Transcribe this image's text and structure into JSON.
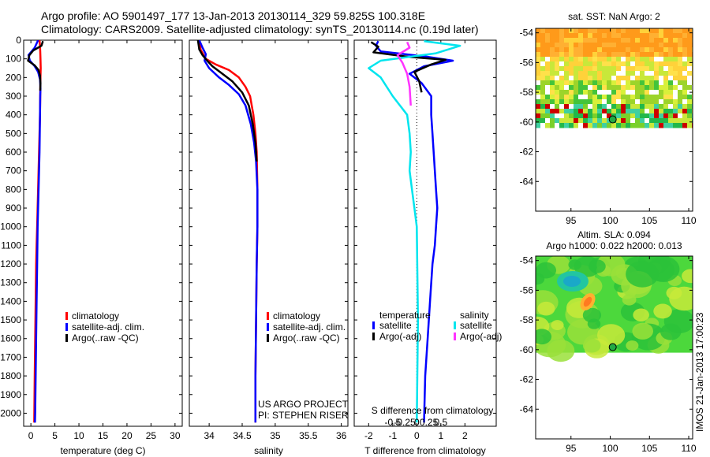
{
  "header": {
    "line1": "Argo profile: AO 5901497_177 13-Jan-2013 20130114_329 59.825S 100.318E",
    "line2": "Climatology: CARS2009. Satellite-adjusted climatology: synTS_20130114.nc (0.19d later)"
  },
  "stamp": "IMOS 21-Jan-2013 17:00:23",
  "colors": {
    "climatology": "#ff0000",
    "satellite": "#0000ff",
    "argo": "#000000",
    "sal_satellite": "#00e5ee",
    "sal_argo": "#ff33ff"
  },
  "chart_data": [
    {
      "type": "line",
      "name": "temperature-profile",
      "xlabel": "temperature (deg C)",
      "ylim": [
        2070,
        0
      ],
      "xlim": [
        -1.5,
        31.5
      ],
      "xticks": [
        0,
        5,
        10,
        15,
        20,
        25,
        30
      ],
      "yticks": [
        0,
        100,
        200,
        300,
        400,
        500,
        600,
        700,
        800,
        900,
        1000,
        1100,
        1200,
        1300,
        1400,
        1500,
        1600,
        1700,
        1800,
        1900,
        2000
      ],
      "legend": [
        "climatology",
        "satellite-adj. clim.",
        "Argo(..raw -QC)"
      ],
      "series": [
        {
          "name": "climatology",
          "color": "#ff0000",
          "x": [
            1.8,
            1.9,
            1.95,
            2.0,
            2.05,
            2.0,
            1.95,
            1.9,
            1.8,
            1.7,
            1.6,
            1.5,
            1.4,
            1.3,
            1.2,
            1.1,
            1.0,
            0.9,
            0.8,
            0.7
          ],
          "y": [
            0,
            30,
            60,
            100,
            150,
            200,
            300,
            400,
            500,
            600,
            700,
            800,
            900,
            1000,
            1100,
            1200,
            1400,
            1600,
            1800,
            2050
          ]
        },
        {
          "name": "satellite-adj. clim.",
          "color": "#0000ff",
          "x": [
            1.5,
            0.8,
            -0.5,
            -0.2,
            0.8,
            1.5,
            1.9,
            2.0,
            1.95,
            1.9,
            1.85,
            1.8,
            1.7,
            1.6,
            1.5,
            1.4,
            1.3,
            1.2,
            1.1,
            1.0,
            0.9,
            0.85
          ],
          "y": [
            0,
            40,
            80,
            110,
            140,
            170,
            210,
            260,
            300,
            400,
            500,
            600,
            700,
            800,
            900,
            1000,
            1200,
            1400,
            1600,
            1800,
            2000,
            2050
          ]
        },
        {
          "name": "Argo(..raw -QC)",
          "color": "#000000",
          "x": [
            2.5,
            2.2,
            0.5,
            -0.3,
            -0.6,
            0.8,
            1.6,
            1.9,
            2.0,
            1.95
          ],
          "y": [
            5,
            30,
            55,
            80,
            110,
            135,
            160,
            190,
            230,
            270
          ]
        }
      ]
    },
    {
      "type": "line",
      "name": "salinity-profile",
      "xlabel": "salinity",
      "ylim": [
        2070,
        0
      ],
      "xlim": [
        33.7,
        36.1
      ],
      "xticks": [
        34,
        34.5,
        35,
        35.5,
        36
      ],
      "legend": [
        "climatology",
        "satellite-adj. clim.",
        "Argo(..raw -QC)"
      ],
      "annotation": [
        "US ARGO PROJECT",
        "PI: STEPHEN RISER"
      ],
      "series": [
        {
          "name": "climatology",
          "color": "#ff0000",
          "x": [
            33.85,
            33.87,
            33.95,
            34.1,
            34.3,
            34.45,
            34.55,
            34.62,
            34.67,
            34.7,
            34.72,
            34.73,
            34.73,
            34.72,
            34.71,
            34.7,
            34.7
          ],
          "y": [
            0,
            50,
            100,
            130,
            160,
            200,
            250,
            300,
            400,
            500,
            600,
            800,
            1000,
            1200,
            1500,
            1800,
            2050
          ]
        },
        {
          "name": "satellite-adj. clim.",
          "color": "#0000ff",
          "x": [
            33.85,
            33.9,
            33.95,
            33.93,
            34.0,
            34.15,
            34.3,
            34.45,
            34.55,
            34.63,
            34.68,
            34.71,
            34.73,
            34.73,
            34.72,
            34.71,
            34.7,
            34.7
          ],
          "y": [
            0,
            40,
            75,
            110,
            150,
            200,
            240,
            290,
            350,
            450,
            550,
            650,
            800,
            1000,
            1200,
            1500,
            1800,
            2050
          ]
        },
        {
          "name": "Argo(..raw -QC)",
          "color": "#000000",
          "x": [
            33.83,
            33.85,
            33.9,
            33.97,
            34.05,
            34.2,
            34.35,
            34.5,
            34.6,
            34.66,
            34.7,
            34.72
          ],
          "y": [
            0,
            50,
            80,
            110,
            140,
            180,
            220,
            280,
            350,
            450,
            550,
            650
          ]
        }
      ]
    },
    {
      "type": "line",
      "name": "difference-profile",
      "xlabel": "T difference from climatology",
      "xlabel_top": "S difference from climatology",
      "ylim": [
        2070,
        0
      ],
      "xlim": [
        -2.6,
        3.3
      ],
      "xticks": [
        -2,
        -1,
        0,
        1,
        2
      ],
      "xticks_top": [
        {
          "v": -1.0,
          "l": "-0.5"
        },
        {
          "v": -0.5,
          "l": "-0.25"
        },
        {
          "v": 0,
          "l": "0"
        },
        {
          "v": 0.5,
          "l": "0.25"
        },
        {
          "v": 1.0,
          "l": "0.5"
        }
      ],
      "legend_left_title": "temperature",
      "legend_left": [
        "satellite",
        "Argo(-adj)"
      ],
      "legend_right_title": "salinity",
      "legend_right": [
        "satellite",
        "Argo(-adj)"
      ],
      "series": [
        {
          "name": "T satellite",
          "color": "#0000ff",
          "x": [
            -1.6,
            -1.7,
            -1.5,
            0.5,
            1.5,
            0.3,
            -0.3,
            0.2,
            0.6,
            0.6,
            0.65,
            0.7,
            0.75,
            0.8,
            0.85,
            0.8,
            0.75,
            0.65,
            0.55,
            0.45,
            0.35,
            0.3
          ],
          "y": [
            5,
            30,
            60,
            90,
            110,
            140,
            180,
            230,
            300,
            400,
            500,
            600,
            700,
            800,
            900,
            1000,
            1100,
            1200,
            1400,
            1600,
            1800,
            2050
          ]
        },
        {
          "name": "T Argo(-adj)",
          "color": "#000000",
          "x": [
            -1.9,
            -1.6,
            -1.8,
            -0.3,
            1.2,
            0.6,
            -0.1,
            0.1,
            0.2
          ],
          "y": [
            10,
            35,
            65,
            90,
            105,
            130,
            170,
            220,
            280
          ]
        },
        {
          "name": "S satellite",
          "color": "#00e5ee",
          "x": [
            0.3,
            1.8,
            0.8,
            -1.5,
            -2.0,
            -1.5,
            -1.0,
            -0.4,
            -0.3,
            -0.25,
            -0.3,
            -0.2,
            -0.1,
            0.0,
            0.05,
            0.0
          ],
          "y": [
            5,
            30,
            70,
            110,
            150,
            200,
            300,
            400,
            500,
            600,
            700,
            800,
            900,
            1000,
            1500,
            2050
          ]
        },
        {
          "name": "S Argo(-adj)",
          "color": "#ff33ff",
          "x": [
            -0.4,
            -0.3,
            -0.8,
            -0.6,
            -0.4,
            -0.3,
            -0.25
          ],
          "y": [
            10,
            40,
            80,
            120,
            180,
            250,
            350
          ]
        }
      ]
    },
    {
      "type": "heatmap",
      "name": "sst-map",
      "title": "sat. SST: NaN Argo: 2",
      "xlim": [
        90.5,
        110.5
      ],
      "ylim": [
        -66,
        -53.7
      ],
      "xticks": [
        95,
        100,
        105,
        110
      ],
      "yticks": [
        -54,
        -56,
        -58,
        -60,
        -62,
        -64
      ],
      "marker": {
        "lon": 100.318,
        "lat": -59.825
      }
    },
    {
      "type": "heatmap",
      "name": "sla-map",
      "title_lines": [
        "Altim. SLA: 0.094",
        "Argo h1000: 0.022 h2000: 0.013"
      ],
      "xlim": [
        90.5,
        110.5
      ],
      "ylim": [
        -66,
        -53.7
      ],
      "xticks": [
        95,
        100,
        105,
        110
      ],
      "yticks": [
        -54,
        -56,
        -58,
        -60,
        -62,
        -64
      ],
      "marker": {
        "lon": 100.318,
        "lat": -59.825
      }
    }
  ]
}
